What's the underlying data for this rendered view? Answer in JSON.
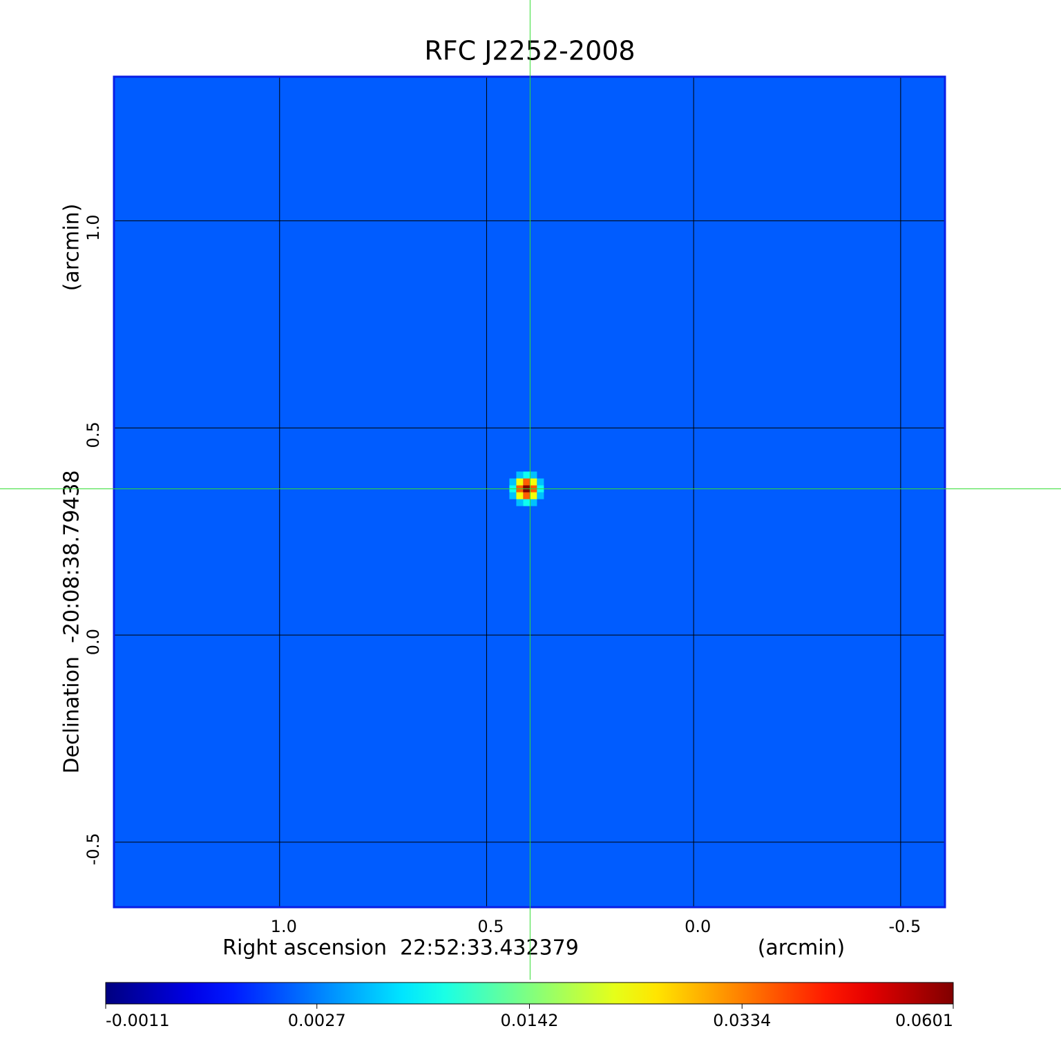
{
  "chart_data": {
    "type": "image",
    "title": "RFC J2252-2008",
    "x_label": "Right ascension  22:52:33.432379",
    "x_unit": "(arcmin)",
    "y_label": "Declination  -20:08:38.79438",
    "y_unit": "(arcmin)",
    "xlim": [
      1.4,
      -0.607
    ],
    "ylim": [
      -0.657,
      1.348
    ],
    "xticks": [
      {
        "value": 1,
        "label": "1.0"
      },
      0.5,
      {
        "value": 0,
        "label": "0.0"
      },
      -0.5
    ],
    "yticks": [
      -0.5,
      {
        "value": 0,
        "label": "0.0"
      },
      0.5,
      {
        "value": 1,
        "label": "1.0"
      }
    ],
    "grid": true,
    "peak": {
      "x": 0.395,
      "y": 0.353,
      "value": 0.0601
    },
    "colorbar": {
      "scale": "sqrt",
      "colormap": "jet",
      "clim": [
        -0.0011,
        0.0601
      ],
      "ticks": [
        -0.0011,
        0.0027,
        0.0142,
        0.0334,
        0.0601
      ]
    },
    "title_color": "#0a14c8",
    "frame_color": "#0a1ee6",
    "crosshair_color": "#33dd33"
  }
}
